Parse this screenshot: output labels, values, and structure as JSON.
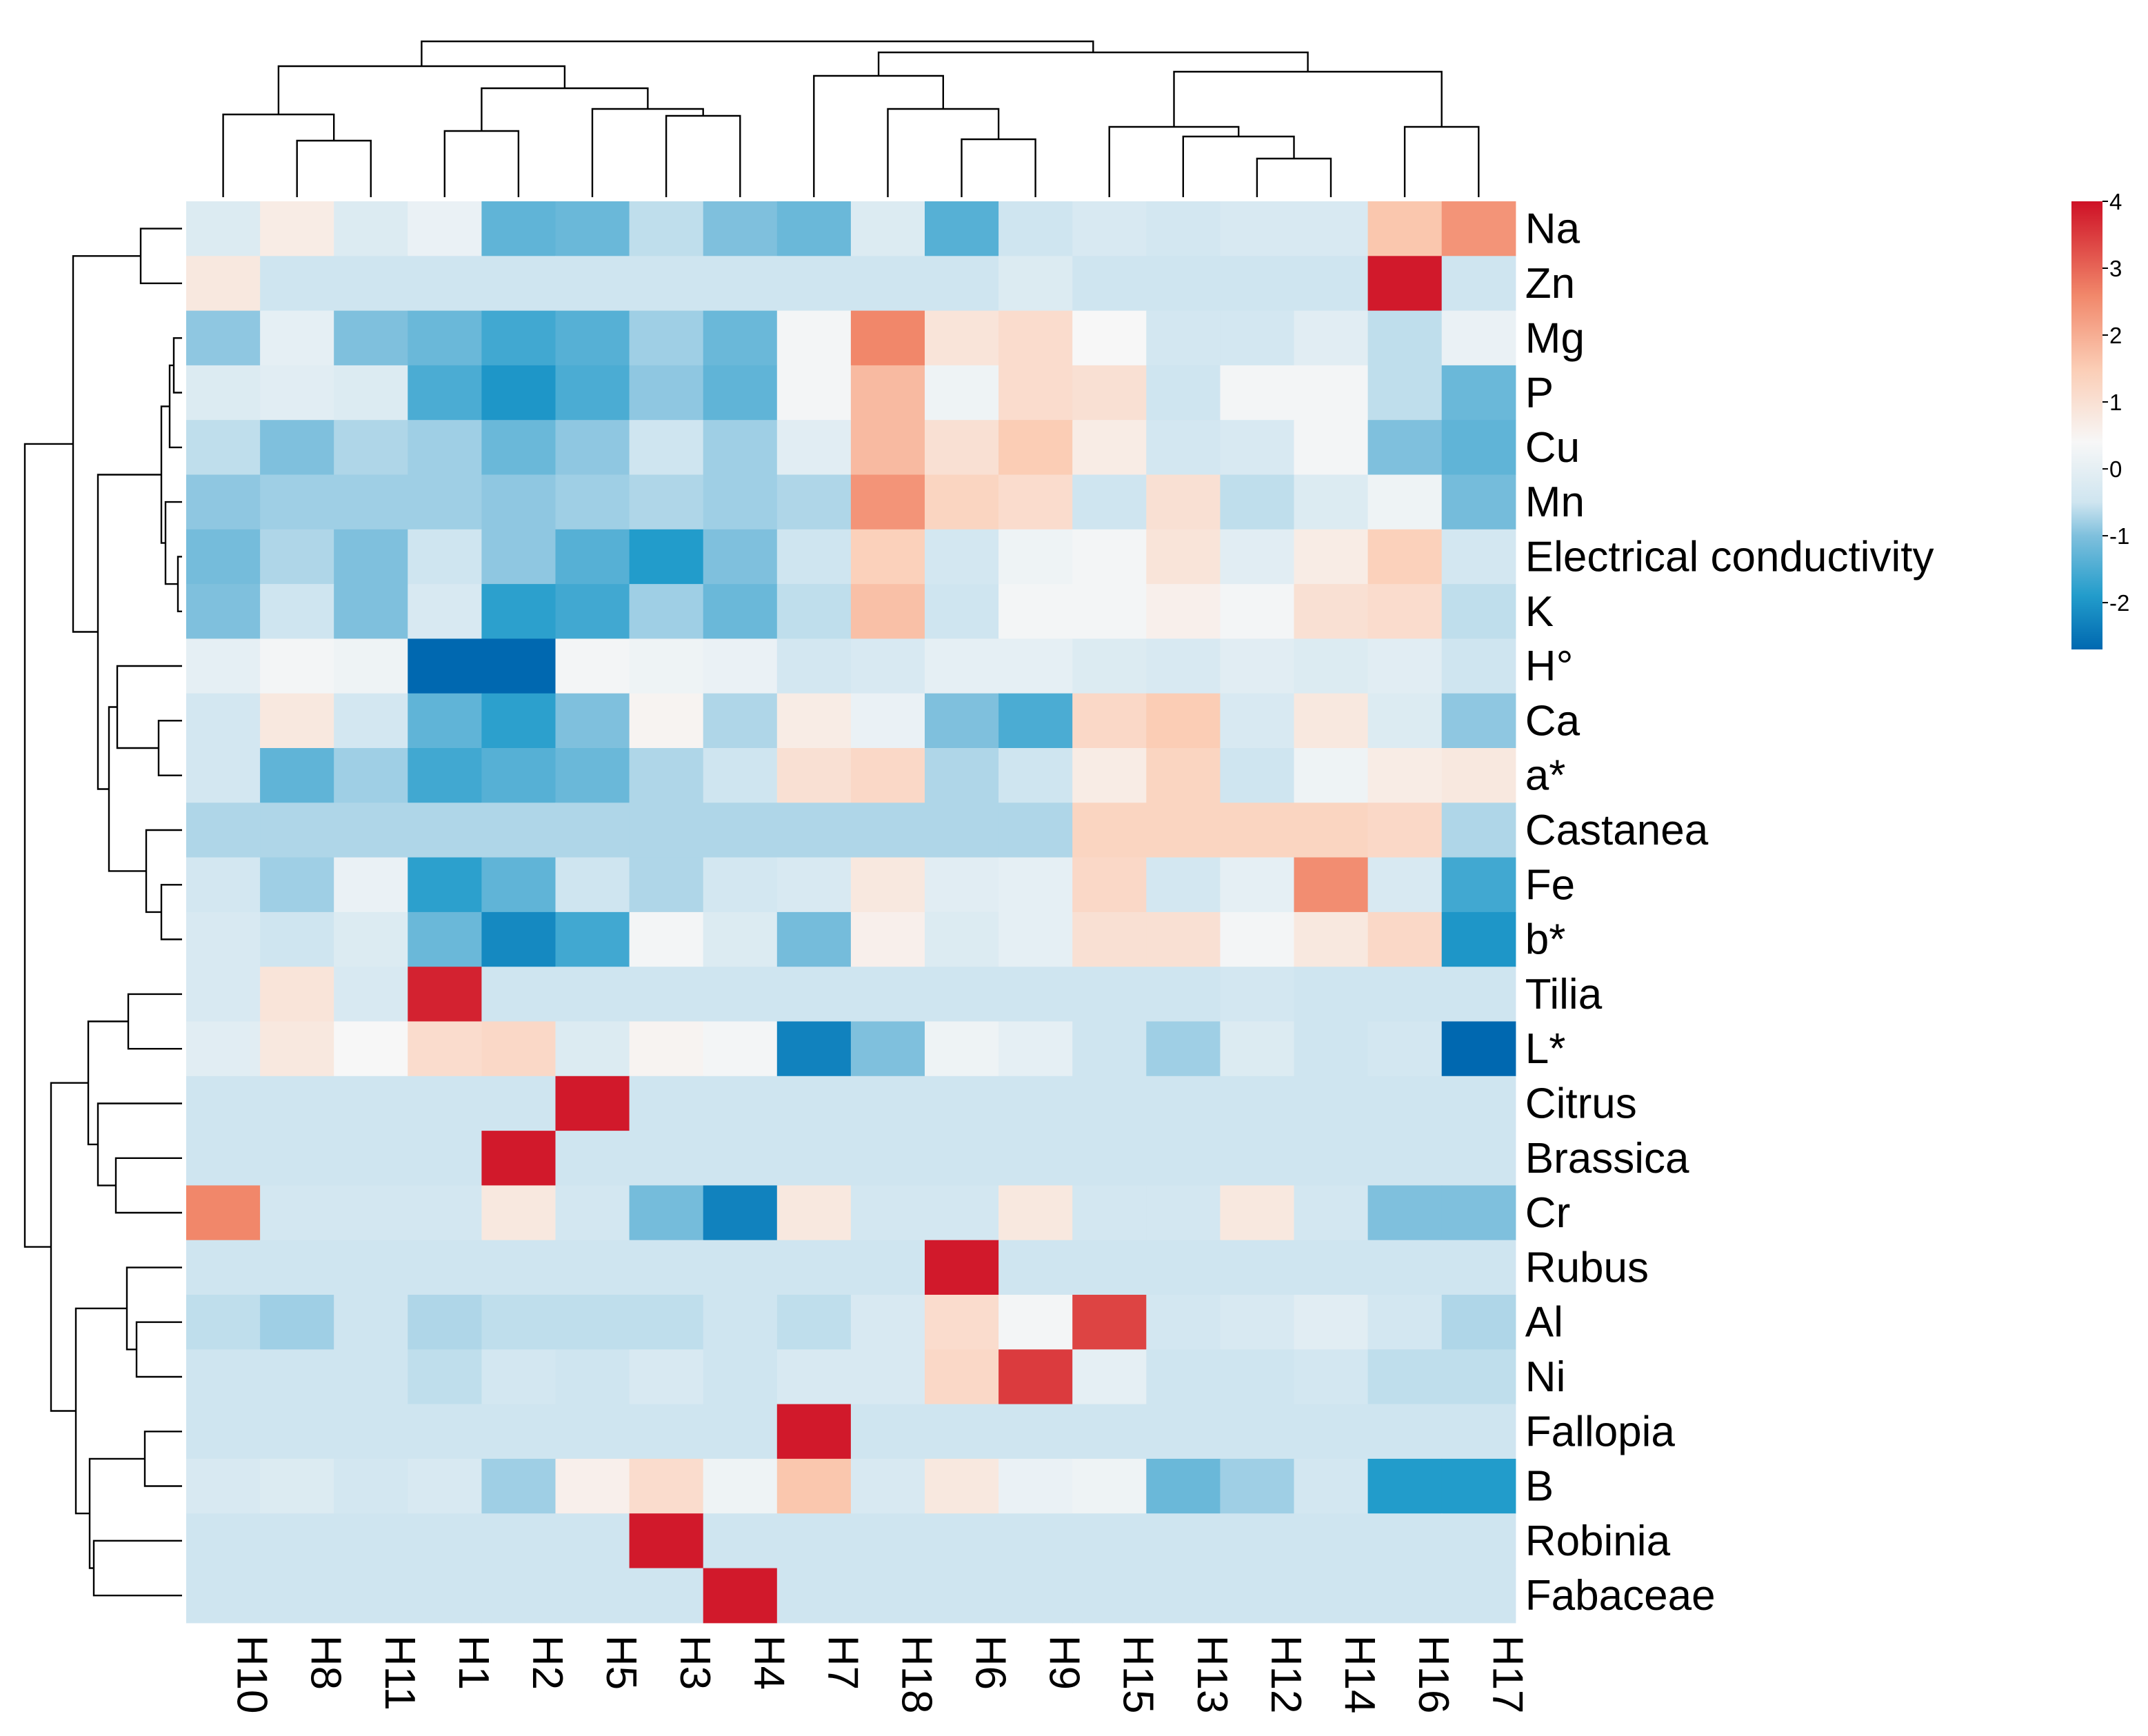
{
  "chart_data": {
    "type": "heatmap",
    "title": "",
    "columns": [
      "H10",
      "H8",
      "H11",
      "H1",
      "H2",
      "H5",
      "H3",
      "H4",
      "H7",
      "H18",
      "H6",
      "H9",
      "H15",
      "H13",
      "H12",
      "H14",
      "H16",
      "H17"
    ],
    "rows": [
      "Na",
      "Zn",
      "Mg",
      "P",
      "Cu",
      "Mn",
      "Electrical conductivity",
      "K",
      "H°",
      "Ca",
      "a*",
      "Castanea",
      "Fe",
      "b*",
      "Tilia",
      "L*",
      "Citrus",
      "Brassica",
      "Cr",
      "Rubus",
      "Al",
      "Ni",
      "Fallopia",
      "B",
      "Robinia",
      "Fabaceae"
    ],
    "values": [
      [
        -0.2,
        0.7,
        -0.2,
        0.1,
        -1.3,
        -1.2,
        -0.6,
        -1.0,
        -1.2,
        -0.2,
        -1.4,
        -0.5,
        -0.3,
        -0.4,
        -0.3,
        -0.3,
        1.6,
        2.4
      ],
      [
        0.8,
        -0.5,
        -0.5,
        -0.5,
        -0.5,
        -0.5,
        -0.5,
        -0.5,
        -0.5,
        -0.5,
        -0.5,
        -0.2,
        -0.5,
        -0.5,
        -0.5,
        -0.5,
        3.9,
        -0.5
      ],
      [
        -0.9,
        0.0,
        -1.0,
        -1.2,
        -1.6,
        -1.4,
        -0.8,
        -1.2,
        0.3,
        2.6,
        0.9,
        1.1,
        0.4,
        -0.4,
        -0.4,
        -0.1,
        -0.6,
        0.1
      ],
      [
        -0.2,
        -0.1,
        -0.2,
        -1.5,
        -2.0,
        -1.5,
        -0.9,
        -1.3,
        0.3,
        1.8,
        0.2,
        1.1,
        1.0,
        -0.5,
        0.3,
        0.3,
        -0.6,
        -1.2
      ],
      [
        -0.6,
        -1.0,
        -0.7,
        -0.8,
        -1.2,
        -0.9,
        -0.5,
        -0.8,
        -0.1,
        1.8,
        1.0,
        1.5,
        0.7,
        -0.4,
        -0.3,
        0.3,
        -1.0,
        -1.3
      ],
      [
        -0.9,
        -0.8,
        -0.8,
        -0.8,
        -0.9,
        -0.8,
        -0.7,
        -0.8,
        -0.7,
        2.4,
        1.3,
        1.1,
        -0.5,
        1.0,
        -0.6,
        -0.2,
        0.2,
        -1.1
      ],
      [
        -1.1,
        -0.7,
        -1.0,
        -0.5,
        -0.9,
        -1.4,
        -1.9,
        -1.0,
        -0.5,
        1.4,
        -0.4,
        0.2,
        0.3,
        0.9,
        -0.1,
        0.7,
        1.4,
        -0.4
      ],
      [
        -1.0,
        -0.5,
        -1.0,
        -0.3,
        -1.8,
        -1.6,
        -0.8,
        -1.2,
        -0.6,
        1.7,
        -0.5,
        0.3,
        0.3,
        0.6,
        0.3,
        1.0,
        1.1,
        -0.6
      ],
      [
        0.0,
        0.3,
        0.2,
        -2.7,
        -2.7,
        0.3,
        0.2,
        0.1,
        -0.4,
        -0.3,
        0.0,
        0.0,
        -0.2,
        -0.3,
        -0.1,
        -0.2,
        -0.1,
        -0.5
      ],
      [
        -0.4,
        0.8,
        -0.4,
        -1.3,
        -1.8,
        -1.0,
        0.5,
        -0.7,
        0.7,
        0.1,
        -1.0,
        -1.5,
        1.2,
        1.5,
        -0.3,
        0.8,
        -0.2,
        -0.9
      ],
      [
        -0.4,
        -1.3,
        -0.8,
        -1.6,
        -1.4,
        -1.2,
        -0.7,
        -0.5,
        1.0,
        1.2,
        -0.7,
        -0.5,
        0.7,
        1.3,
        -0.5,
        0.2,
        0.7,
        0.8
      ],
      [
        -0.7,
        -0.7,
        -0.7,
        -0.7,
        -0.7,
        -0.7,
        -0.7,
        -0.7,
        -0.7,
        -0.7,
        -0.7,
        -0.7,
        1.3,
        1.3,
        1.3,
        1.3,
        1.2,
        -0.7
      ],
      [
        -0.4,
        -0.8,
        0.1,
        -1.8,
        -1.3,
        -0.5,
        -0.7,
        -0.4,
        -0.3,
        0.8,
        -0.1,
        0.0,
        1.2,
        -0.4,
        0.0,
        2.5,
        -0.3,
        -1.6
      ],
      [
        -0.3,
        -0.5,
        -0.2,
        -1.2,
        -2.2,
        -1.6,
        0.3,
        -0.2,
        -1.1,
        0.6,
        -0.2,
        0.0,
        1.0,
        1.0,
        0.3,
        0.8,
        1.2,
        -2.0
      ],
      [
        -0.3,
        0.9,
        -0.3,
        3.8,
        -0.5,
        -0.5,
        -0.5,
        -0.5,
        -0.5,
        -0.5,
        -0.5,
        -0.5,
        -0.5,
        -0.5,
        -0.4,
        -0.5,
        -0.5,
        -0.5
      ],
      [
        -0.1,
        0.8,
        0.4,
        1.1,
        1.2,
        -0.2,
        0.5,
        0.3,
        -2.3,
        -1.0,
        0.2,
        0.0,
        -0.5,
        -0.8,
        -0.2,
        -0.5,
        -0.4,
        -2.7
      ],
      [
        -0.5,
        -0.5,
        -0.5,
        -0.5,
        -0.5,
        3.9,
        -0.5,
        -0.5,
        -0.5,
        -0.5,
        -0.5,
        -0.5,
        -0.5,
        -0.5,
        -0.5,
        -0.5,
        -0.5,
        -0.5
      ],
      [
        -0.5,
        -0.5,
        -0.5,
        -0.5,
        3.9,
        -0.5,
        -0.5,
        -0.5,
        -0.5,
        -0.5,
        -0.5,
        -0.5,
        -0.5,
        -0.5,
        -0.5,
        -0.5,
        -0.5,
        -0.5
      ],
      [
        2.6,
        -0.4,
        -0.4,
        -0.4,
        0.8,
        -0.4,
        -1.1,
        -2.3,
        0.8,
        -0.4,
        -0.4,
        0.8,
        -0.4,
        -0.4,
        0.8,
        -0.4,
        -1.0,
        -1.0
      ],
      [
        -0.5,
        -0.5,
        -0.5,
        -0.5,
        -0.5,
        -0.5,
        -0.5,
        -0.5,
        -0.5,
        -0.5,
        3.9,
        -0.5,
        -0.5,
        -0.5,
        -0.5,
        -0.5,
        -0.5,
        -0.5
      ],
      [
        -0.6,
        -0.8,
        -0.5,
        -0.7,
        -0.6,
        -0.6,
        -0.6,
        -0.5,
        -0.6,
        -0.3,
        1.1,
        0.3,
        3.4,
        -0.4,
        -0.3,
        -0.1,
        -0.4,
        -0.7
      ],
      [
        -0.5,
        -0.5,
        -0.5,
        -0.6,
        -0.4,
        -0.5,
        -0.3,
        -0.5,
        -0.3,
        -0.3,
        1.2,
        3.5,
        0.0,
        -0.5,
        -0.5,
        -0.4,
        -0.6,
        -0.6
      ],
      [
        -0.5,
        -0.5,
        -0.5,
        -0.5,
        -0.5,
        -0.5,
        -0.5,
        -0.5,
        3.9,
        -0.5,
        -0.5,
        -0.5,
        -0.5,
        -0.5,
        -0.5,
        -0.5,
        -0.5,
        -0.5
      ],
      [
        -0.3,
        -0.2,
        -0.4,
        -0.3,
        -0.8,
        0.6,
        1.1,
        0.2,
        1.6,
        -0.3,
        0.8,
        0.1,
        0.2,
        -1.2,
        -0.8,
        -0.4,
        -1.9,
        -1.9
      ],
      [
        -0.5,
        -0.5,
        -0.5,
        -0.5,
        -0.5,
        -0.5,
        3.9,
        -0.5,
        -0.5,
        -0.5,
        -0.5,
        -0.5,
        -0.5,
        -0.5,
        -0.5,
        -0.5,
        -0.5,
        -0.5
      ],
      [
        -0.5,
        -0.5,
        -0.5,
        -0.5,
        -0.5,
        -0.5,
        -0.5,
        3.9,
        -0.5,
        -0.5,
        -0.5,
        -0.5,
        -0.5,
        -0.5,
        -0.5,
        -0.5,
        -0.5,
        -0.5
      ]
    ],
    "color_scale": {
      "min": -2.7,
      "max": 4,
      "stops": [
        {
          "value": -2.7,
          "color": "#0068b0"
        },
        {
          "value": -1.9,
          "color": "#229ccb"
        },
        {
          "value": -1.0,
          "color": "#7fc0dd"
        },
        {
          "value": -0.5,
          "color": "#cfe5f0"
        },
        {
          "value": 0.4,
          "color": "#f7f7f7"
        },
        {
          "value": 1.5,
          "color": "#fbcdb5"
        },
        {
          "value": 2.6,
          "color": "#f1876a"
        },
        {
          "value": 4.0,
          "color": "#ce1126"
        }
      ]
    },
    "legend": {
      "ticks": [
        4,
        3,
        2,
        1,
        0,
        -1,
        -2
      ],
      "tick_labels": [
        "4",
        "3",
        "2",
        "1",
        "0",
        "-1",
        "-2"
      ],
      "placement": "top-right"
    },
    "column_dendrogram": "top",
    "row_dendrogram": "left"
  }
}
